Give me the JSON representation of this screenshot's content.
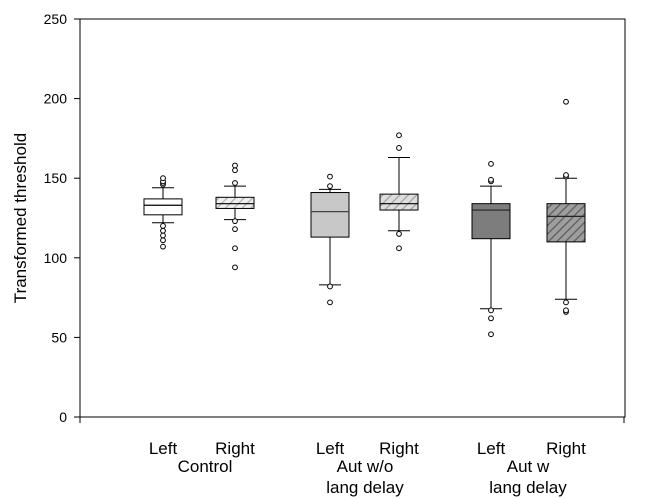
{
  "chart_data": {
    "type": "box",
    "ylabel": "Transformed threshold",
    "ylim": [
      0,
      250
    ],
    "yticks": [
      0,
      50,
      100,
      150,
      200,
      250
    ],
    "grid": false,
    "groups": [
      {
        "label": "Control",
        "categories": [
          "Left",
          "Right"
        ]
      },
      {
        "label_lines": [
          "Aut w/o",
          "lang delay"
        ],
        "categories": [
          "Left",
          "Right"
        ]
      },
      {
        "label_lines": [
          "Aut w",
          "lang delay"
        ],
        "categories": [
          "Left",
          "Right"
        ]
      }
    ],
    "boxes": [
      {
        "group": 0,
        "category": "Left",
        "fill": "#ffffff",
        "hatch": false,
        "whisker_low": 122,
        "q1": 127,
        "median": 133,
        "q3": 137,
        "whisker_high": 144,
        "outliers": [
          107,
          111,
          114,
          117,
          120,
          146,
          147,
          148,
          150
        ]
      },
      {
        "group": 0,
        "category": "Right",
        "fill": "#e6e6e6",
        "hatch": true,
        "whisker_low": 124,
        "q1": 131,
        "median": 134,
        "q3": 138,
        "whisker_high": 145,
        "outliers": [
          94,
          106,
          118,
          123,
          147,
          155,
          158
        ]
      },
      {
        "group": 1,
        "category": "Left",
        "fill": "#c8c8c8",
        "hatch": false,
        "whisker_low": 83,
        "q1": 113,
        "median": 129,
        "q3": 141,
        "whisker_high": 143,
        "outliers": [
          72,
          82,
          145,
          151
        ]
      },
      {
        "group": 1,
        "category": "Right",
        "fill": "#cfcfcf",
        "hatch": true,
        "whisker_low": 117,
        "q1": 130,
        "median": 134,
        "q3": 140,
        "whisker_high": 163,
        "outliers": [
          106,
          115,
          169,
          177
        ]
      },
      {
        "group": 2,
        "category": "Left",
        "fill": "#7d7d7d",
        "hatch": false,
        "whisker_low": 68,
        "q1": 112,
        "median": 130,
        "q3": 134,
        "whisker_high": 145,
        "outliers": [
          52,
          62,
          67,
          148,
          149,
          159
        ]
      },
      {
        "group": 2,
        "category": "Right",
        "fill": "#8c8c8c",
        "hatch": true,
        "whisker_low": 74,
        "q1": 110,
        "median": 126,
        "q3": 134,
        "whisker_high": 150,
        "outliers": [
          66,
          67,
          72,
          151,
          152,
          198
        ]
      }
    ]
  }
}
